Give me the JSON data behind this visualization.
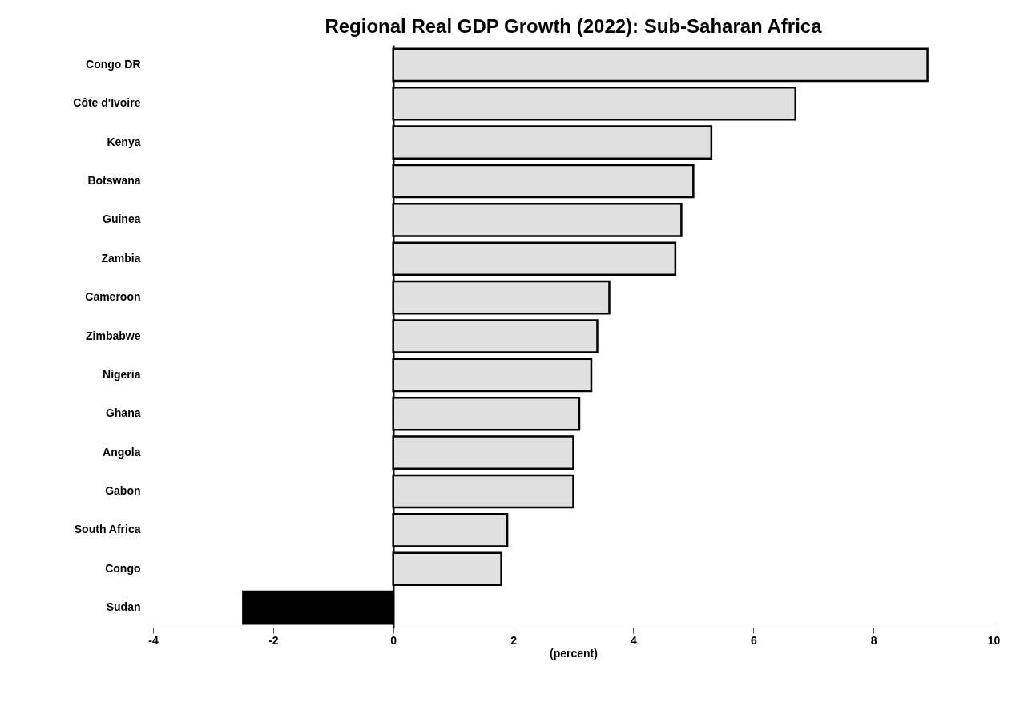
{
  "chart_data": {
    "type": "bar",
    "orientation": "horizontal",
    "title": "Regional Real GDP Growth (2022): Sub-Saharan Africa",
    "xlabel": "(percent)",
    "categories": [
      "Congo DR",
      "Côte d'Ivoire",
      "Kenya",
      "Botswana",
      "Guinea",
      "Zambia",
      "Cameroon",
      "Zimbabwe",
      "Nigeria",
      "Ghana",
      "Angola",
      "Gabon",
      "South Africa",
      "Congo",
      "Sudan"
    ],
    "values": [
      8.9,
      6.7,
      5.3,
      5.0,
      4.8,
      4.7,
      3.6,
      3.4,
      3.3,
      3.1,
      3.0,
      3.0,
      1.9,
      1.8,
      -2.5
    ],
    "colors": [
      "#e0e0e0",
      "#e0e0e0",
      "#e0e0e0",
      "#e0e0e0",
      "#e0e0e0",
      "#e0e0e0",
      "#e0e0e0",
      "#e0e0e0",
      "#e0e0e0",
      "#e0e0e0",
      "#e0e0e0",
      "#e0e0e0",
      "#e0e0e0",
      "#e0e0e0",
      "#000000"
    ],
    "xlim": [
      -4,
      10
    ],
    "xticks": [
      {
        "value": -4,
        "label": "-4"
      },
      {
        "value": -2,
        "label": "-2"
      },
      0,
      2,
      4,
      6,
      8,
      10
    ]
  }
}
